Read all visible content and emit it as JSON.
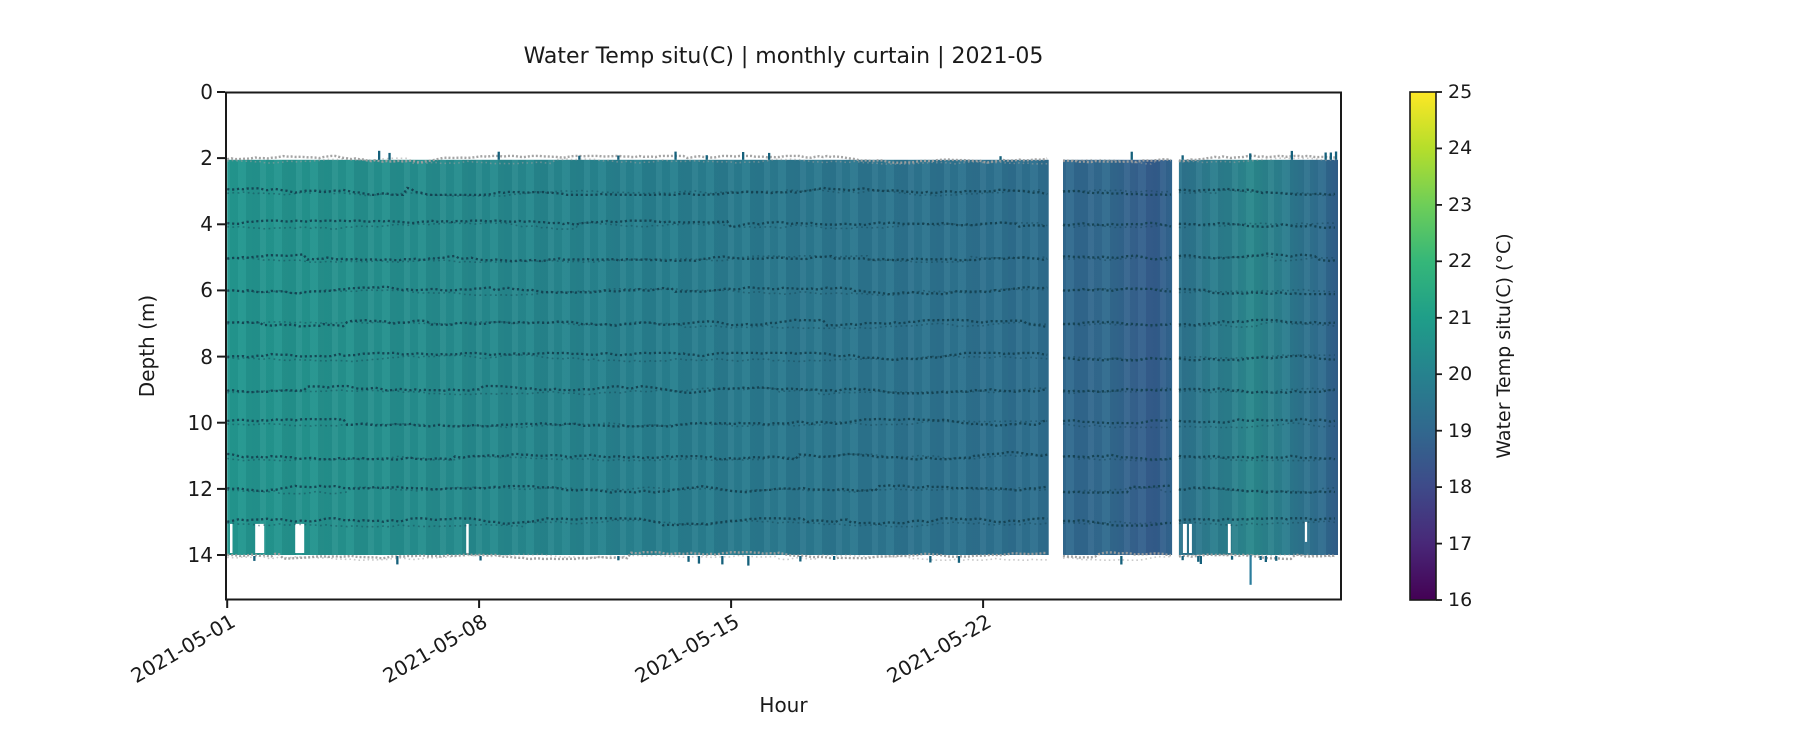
{
  "chart_data": {
    "type": "heatmap",
    "title": "Water Temp situ(C) | monthly curtain | 2021-05",
    "xlabel": "Hour",
    "ylabel": "Depth (m)",
    "x_tick_labels": [
      "2021-05-01",
      "2021-05-08",
      "2021-05-15",
      "2021-05-22"
    ],
    "x_ticks_day": [
      0,
      7,
      14,
      21
    ],
    "x_range_days": [
      -0.06,
      30.97
    ],
    "y_ticks": [
      0,
      2,
      4,
      6,
      8,
      10,
      12,
      14
    ],
    "y_range_m": [
      0,
      15.36
    ],
    "grid": false,
    "legend": null,
    "curtain": {
      "depth_top_m": 2.05,
      "depth_bottom_m": 14.0,
      "sensor_line_depths_m": [
        3,
        4,
        5,
        6,
        7,
        8,
        9,
        10,
        11,
        12,
        13
      ],
      "edge_line_color": "#9f9f9f",
      "sensor_line_color": "#14404f",
      "tick_noise_color": "#15607b",
      "segments": [
        {
          "start_day": 0.0,
          "end_day": 22.82,
          "approx_temp_c": [
            21.0,
            19.7
          ],
          "gradient": [
            [
              "#23968e",
              0
            ],
            [
              "#25908d",
              0.16
            ],
            [
              "#26898d",
              0.32
            ],
            [
              "#287f8e",
              0.52
            ],
            [
              "#2b788e",
              0.68
            ],
            [
              "#2d738e",
              0.84
            ],
            [
              "#2e6e8e",
              1
            ]
          ]
        },
        {
          "start_day": 23.22,
          "end_day": 26.25,
          "approx_temp_c": [
            19.0,
            18.8
          ],
          "gradient": [
            [
              "#31688e",
              0
            ],
            [
              "#32698e",
              0.45
            ],
            [
              "#365f8d",
              0.72
            ],
            [
              "#345d8c",
              0.85
            ],
            [
              "#31658e",
              1
            ]
          ]
        },
        {
          "start_day": 26.44,
          "end_day": 30.86,
          "approx_temp_c": [
            19.9,
            19.3
          ],
          "gradient": [
            [
              "#2e748e",
              0
            ],
            [
              "#2b7f8d",
              0.3
            ],
            [
              "#2b888c",
              0.48
            ],
            [
              "#2c7b8e",
              0.68
            ],
            [
              "#306b8e",
              0.9
            ],
            [
              "#315f8c",
              1
            ]
          ]
        }
      ],
      "full_gaps_day": [
        [
          22.82,
          23.22
        ],
        [
          26.25,
          26.44
        ]
      ],
      "bottom_band_gaps_day": [
        [
          0.08,
          0.15
        ],
        [
          0.78,
          1.03
        ],
        [
          1.89,
          2.14
        ],
        [
          6.64,
          6.71
        ],
        [
          26.55,
          26.66
        ],
        [
          26.72,
          26.8
        ],
        [
          27.8,
          27.88
        ]
      ],
      "bottom_band_gaps_partial_day": [
        [
          29.94,
          30.0
        ]
      ],
      "spike": {
        "day": 28.4,
        "from_depth_m": 14.0,
        "to_depth_m": 14.9,
        "color": "#2b7d9c"
      }
    },
    "colorbar": {
      "label": "Water Temp situ(C) (°C)",
      "min": 16,
      "max": 25,
      "ticks": [
        16,
        17,
        18,
        19,
        20,
        21,
        22,
        23,
        24,
        25
      ],
      "colormap": "viridis",
      "stops": [
        [
          "#440154",
          16
        ],
        [
          "#482878",
          17
        ],
        [
          "#3e4a89",
          18
        ],
        [
          "#31688e",
          19
        ],
        [
          "#26828e",
          20
        ],
        [
          "#1f9e89",
          21
        ],
        [
          "#35b779",
          22
        ],
        [
          "#6ece58",
          23
        ],
        [
          "#b5de2b",
          24
        ],
        [
          "#fde725",
          25
        ]
      ]
    }
  }
}
